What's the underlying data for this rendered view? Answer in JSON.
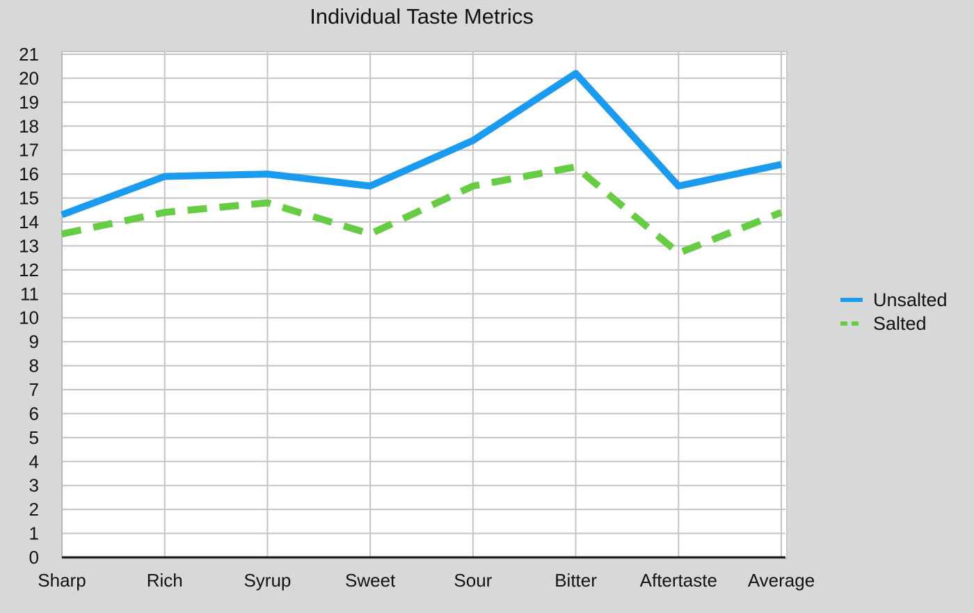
{
  "chart_data": {
    "type": "line",
    "title": "Individual Taste Metrics",
    "xlabel": "",
    "ylabel": "",
    "categories": [
      "Sharp",
      "Rich",
      "Syrup",
      "Sweet",
      "Sour",
      "Bitter",
      "Aftertaste",
      "Average"
    ],
    "ylim": [
      0,
      21
    ],
    "yticks": [
      0,
      1,
      2,
      3,
      4,
      5,
      6,
      7,
      8,
      9,
      10,
      11,
      12,
      13,
      14,
      15,
      16,
      17,
      18,
      19,
      20,
      21
    ],
    "grid": true,
    "legend_position": "right",
    "series": [
      {
        "name": "Unsalted",
        "color": "#1b9bf0",
        "dash": "solid",
        "values": [
          14.3,
          15.9,
          16.0,
          15.5,
          17.4,
          20.2,
          15.5,
          16.4
        ]
      },
      {
        "name": "Salted",
        "color": "#66cc44",
        "dash": "dashed",
        "values": [
          13.5,
          14.4,
          14.8,
          13.5,
          15.5,
          16.3,
          12.7,
          14.4
        ]
      }
    ]
  }
}
